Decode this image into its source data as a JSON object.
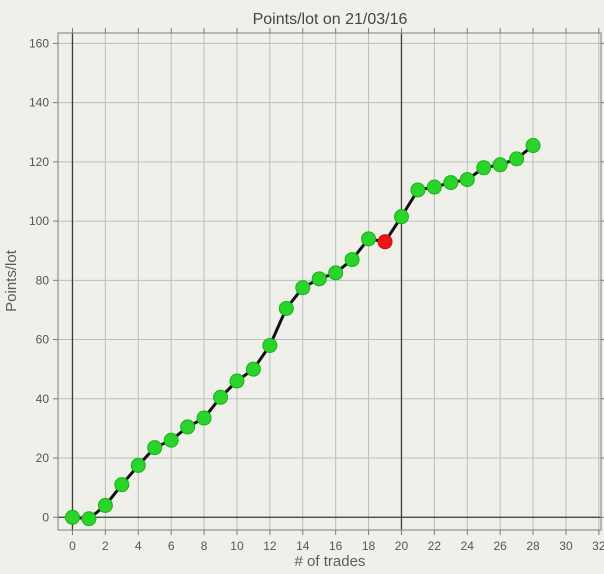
{
  "title": "Points/lot on 21/03/16",
  "chart_data": {
    "type": "line",
    "title": "Points/lot on 21/03/16",
    "xlabel": "# of trades",
    "ylabel": "Points/lot",
    "x": [
      0,
      1,
      2,
      3,
      4,
      5,
      6,
      7,
      8,
      9,
      10,
      11,
      12,
      13,
      14,
      15,
      16,
      17,
      18,
      19,
      20,
      21,
      22,
      23,
      24,
      25,
      26,
      27,
      28
    ],
    "y": [
      0,
      -0.5,
      4,
      11,
      17.5,
      23.5,
      26,
      30.5,
      33.5,
      40.5,
      46,
      50,
      58,
      70.5,
      77.5,
      80.5,
      82.5,
      87,
      94,
      93,
      101.5,
      110.5,
      111.5,
      113,
      114,
      118,
      119,
      121,
      125.5
    ],
    "xticks": [
      0,
      2,
      4,
      6,
      8,
      10,
      12,
      14,
      16,
      18,
      20,
      22,
      24,
      26,
      28,
      30,
      32
    ],
    "yticks": [
      0,
      20,
      40,
      60,
      80,
      100,
      120,
      140,
      160
    ],
    "xlim": [
      -0.88,
      32.13
    ],
    "ylim": [
      -4.3,
      163.5
    ],
    "grid": true,
    "legend": false,
    "emphasized_vertical_lines_at_x": [
      0,
      20
    ],
    "emphasized_horizontal_lines_at_y": [
      0
    ],
    "marker_default_color": "#2bd42b",
    "marker_default_edge": "#15b315",
    "marker_overrides": {
      "19": {
        "fill": "#ee1414",
        "edge": "#c30c0c"
      }
    },
    "line_color": "#111111",
    "colors": {
      "background": "#f0f0ea",
      "grid_light": "#bcbcbc",
      "grid_dark": "#3c3c3c",
      "plot_border": "#8f8f8f",
      "tick_mark": "#7a7a7a",
      "title_text": "#454545",
      "axis_label_text": "#5c5c5c",
      "tick_label_text": "#555555"
    }
  }
}
